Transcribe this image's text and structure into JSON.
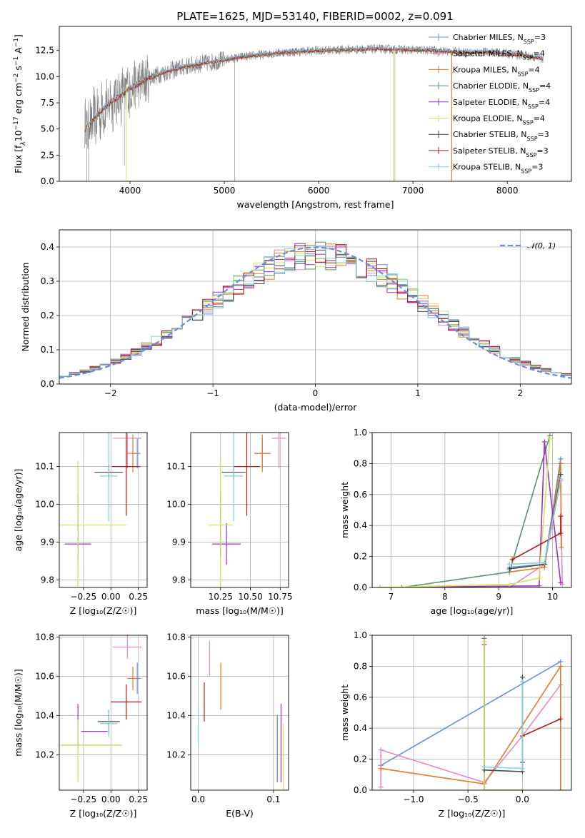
{
  "figure_title": "PLATE=1625, MJD=53140, FIBERID=0002, z=0.091",
  "colors": {
    "chabrier_miles": "#6a8fd8",
    "salpeter_miles": "#e08bc4",
    "kroupa_miles": "#e07b2a",
    "chabrier_elodie": "#5f8f6a",
    "salpeter_elodie": "#9b30c4",
    "kroupa_elodie": "#d4e35a",
    "chabrier_stelib": "#4a4a4a",
    "salpeter_stelib": "#b01c1c",
    "kroupa_stelib": "#7fd3dd",
    "data": "#808080",
    "normal": "#6a8fd8",
    "grid": "#b0b0b0"
  },
  "chart_data": [
    {
      "id": "spectrum",
      "type": "line",
      "title": "PLATE=1625, MJD=53140, FIBERID=0002, z=0.091",
      "xlabel": "wavelength [Angstrom, rest frame]",
      "ylabel": "Flux [f",
      "ylabel_parts": [
        "Flux [f",
        "λ",
        "10",
        "−17",
        " erg cm",
        "−2",
        " s",
        "−1",
        " A",
        "−1",
        "]"
      ],
      "xlim": [
        3250,
        8680
      ],
      "ylim": [
        0,
        14.8
      ],
      "xticks": [
        4000,
        5000,
        6000,
        7000,
        8000
      ],
      "yticks": [
        0.0,
        2.5,
        5.0,
        7.5,
        10.0,
        12.5
      ],
      "xtick_labels": [
        "4000",
        "5000",
        "6000",
        "7000",
        "8000"
      ],
      "ytick_labels": [
        "0.0",
        "2.5",
        "5.0",
        "7.5",
        "10.0",
        "12.5"
      ],
      "continuum_x": [
        3520,
        3600,
        3700,
        3800,
        3900,
        4000,
        4100,
        4200,
        4400,
        4600,
        4800,
        5000,
        5200,
        5400,
        5600,
        5800,
        6000,
        6200,
        6400,
        6600,
        6800,
        7000,
        7200,
        7400,
        7600,
        7800,
        8000,
        8200,
        8380
      ],
      "continuum_y": [
        5.0,
        5.8,
        6.8,
        7.6,
        8.2,
        8.9,
        9.4,
        9.9,
        10.5,
        11.0,
        11.3,
        11.6,
        11.9,
        12.1,
        12.3,
        12.4,
        12.5,
        12.55,
        12.6,
        12.65,
        12.6,
        12.55,
        12.5,
        12.4,
        12.3,
        12.35,
        12.2,
        12.0,
        11.7
      ],
      "legend": [
        "Chabrier MILES, N",
        "Salpeter MILES, N",
        "Kroupa MILES, N",
        "Chabrier ELODIE, N",
        "Salpeter ELODIE, N",
        "Kroupa ELODIE, N",
        "Chabrier STELIB, N",
        "Salpeter STELIB, N",
        "Kroupa STELIB, N"
      ],
      "legend_sub": "SSP",
      "legend_n": [
        "=3",
        "=4",
        "=4",
        "=4",
        "=4",
        "=4",
        "=3",
        "=3",
        "=3"
      ],
      "legend_placement": "upper right",
      "grid": false
    },
    {
      "id": "residuals",
      "type": "histogram",
      "xlabel": "(data-model)/error",
      "ylabel": "Normed distribution",
      "xlim": [
        -2.5,
        2.5
      ],
      "ylim": [
        0,
        0.45
      ],
      "xticks": [
        -2,
        -1,
        0,
        1,
        2
      ],
      "yticks": [
        0.0,
        0.1,
        0.2,
        0.3,
        0.4
      ],
      "xtick_labels": [
        "−2",
        "−1",
        "0",
        "1",
        "2"
      ],
      "ytick_labels": [
        "0.0",
        "0.1",
        "0.2",
        "0.3",
        "0.4"
      ],
      "bin_width": 0.1,
      "normal_label": "𝒩(0, 1)",
      "legend_placement": "upper right",
      "grid": true
    },
    {
      "id": "age_vs_Z",
      "type": "scatter",
      "xlabel": "Z [log₁₀(Z/Z☉)]",
      "ylabel": "age  [log₁₀(age/yr)]",
      "xlim": [
        -0.47,
        0.33
      ],
      "ylim": [
        9.78,
        10.19
      ],
      "xticks": [
        -0.25,
        0.0,
        0.25
      ],
      "yticks": [
        9.8,
        9.9,
        10.0,
        10.1
      ],
      "xtick_labels": [
        "−0.25",
        "0.00",
        "0.25"
      ],
      "ytick_labels": [
        "9.8",
        "9.9",
        "10.0",
        "10.1"
      ],
      "grid": true,
      "points": [
        {
          "s": "chabrier_miles",
          "x": 0.24,
          "xe": 0.03,
          "y": 10.135,
          "ye": 0.04
        },
        {
          "s": "salpeter_miles",
          "x": 0.15,
          "xe": 0.13,
          "y": 10.175,
          "ye": 0.08
        },
        {
          "s": "kroupa_miles",
          "x": 0.2,
          "xe": 0.05,
          "y": 10.135,
          "ye": 0.05
        },
        {
          "s": "chabrier_elodie",
          "x": -0.3,
          "xe": 0.0,
          "y": 9.945,
          "ye": 0.085
        },
        {
          "s": "salpeter_elodie",
          "x": -0.3,
          "xe": 0.12,
          "y": 9.895,
          "ye": 0.055
        },
        {
          "s": "kroupa_elodie",
          "x": -0.3,
          "xe": 0.0,
          "y": 9.945,
          "ye": 0.17
        },
        {
          "s": "chabrier_stelib",
          "x": -0.02,
          "xe": 0.13,
          "y": 10.085,
          "ye": 0.02
        },
        {
          "s": "salpeter_stelib",
          "x": 0.14,
          "xe": 0.13,
          "y": 10.1,
          "ye": 0.13
        },
        {
          "s": "kroupa_stelib",
          "x": -0.02,
          "xe": 0.08,
          "y": 10.075,
          "ye": 0.12
        },
        {
          "s": "kroupa_elodie",
          "x": -0.18,
          "xe": 0.32,
          "y": 9.945,
          "ye": 0.0
        }
      ]
    },
    {
      "id": "age_vs_mass",
      "type": "scatter",
      "xlabel": "mass [log₁₀(M/M☉)]",
      "ylabel": "",
      "xlim": [
        10.0,
        10.82
      ],
      "ylim": [
        9.78,
        10.19
      ],
      "xticks": [
        10.25,
        10.5,
        10.75
      ],
      "yticks": [
        9.8,
        9.9,
        10.0,
        10.1
      ],
      "xtick_labels": [
        "10.25",
        "10.50",
        "10.75"
      ],
      "ytick_labels": [
        "9.8",
        "9.9",
        "10.0",
        "10.1"
      ],
      "grid": true,
      "points": [
        {
          "s": "chabrier_miles",
          "x": 10.6,
          "xe": 0.07,
          "y": 10.135,
          "ye": 0.04
        },
        {
          "s": "salpeter_miles",
          "x": 10.74,
          "xe": 0.06,
          "y": 10.175,
          "ye": 0.08
        },
        {
          "s": "kroupa_miles",
          "x": 10.6,
          "xe": 0.06,
          "y": 10.135,
          "ye": 0.05
        },
        {
          "s": "chabrier_elodie",
          "x": 10.25,
          "xe": 0.0,
          "y": 9.945,
          "ye": 0.085
        },
        {
          "s": "salpeter_elodie",
          "x": 10.3,
          "xe": 0.12,
          "y": 9.895,
          "ye": 0.055
        },
        {
          "s": "kroupa_elodie",
          "x": 10.25,
          "xe": 0.1,
          "y": 9.945,
          "ye": 0.17
        },
        {
          "s": "chabrier_stelib",
          "x": 10.36,
          "xe": 0.1,
          "y": 10.085,
          "ye": 0.02
        },
        {
          "s": "salpeter_stelib",
          "x": 10.47,
          "xe": 0.11,
          "y": 10.1,
          "ye": 0.13
        },
        {
          "s": "kroupa_stelib",
          "x": 10.36,
          "xe": 0.08,
          "y": 10.075,
          "ye": 0.12
        }
      ]
    },
    {
      "id": "massweight_vs_age",
      "type": "line",
      "xlabel": "age  [log₁₀(age/yr)]",
      "ylabel": "mass weight",
      "xlim": [
        6.65,
        10.35
      ],
      "ylim": [
        0,
        1.0
      ],
      "xticks": [
        7,
        8,
        9,
        10
      ],
      "yticks": [
        0.0,
        0.2,
        0.4,
        0.6,
        0.8,
        1.0
      ],
      "xtick_labels": [
        "7",
        "8",
        "9",
        "10"
      ],
      "ytick_labels": [
        "0.0",
        "0.2",
        "0.4",
        "0.6",
        "0.8",
        "1.0"
      ],
      "grid": true,
      "series": [
        {
          "s": "chabrier_miles",
          "x": [
            9.2,
            9.85,
            10.15
          ],
          "y": [
            0.13,
            0.15,
            0.83
          ]
        },
        {
          "s": "salpeter_miles",
          "x": [
            9.2,
            9.85,
            10.15,
            10.18
          ],
          "y": [
            0.0,
            0.15,
            0.69,
            0.02
          ]
        },
        {
          "s": "kroupa_miles",
          "x": [
            9.2,
            9.85,
            10.15,
            10.16
          ],
          "y": [
            0.1,
            0.13,
            0.8,
            0.26
          ]
        },
        {
          "s": "chabrier_elodie",
          "x": [
            7.2,
            9.2,
            9.95
          ],
          "y": [
            0.0,
            0.1,
            0.98
          ]
        },
        {
          "s": "salpeter_elodie",
          "x": [
            6.8,
            9.75,
            9.85,
            10.15
          ],
          "y": [
            0.0,
            0.01,
            0.94,
            0.03
          ]
        },
        {
          "s": "kroupa_elodie",
          "x": [
            6.8,
            9.2,
            9.75,
            9.95
          ],
          "y": [
            0.0,
            0.02,
            0.06,
            0.96
          ]
        },
        {
          "s": "chabrier_stelib",
          "x": [
            9.2,
            9.85,
            10.15
          ],
          "y": [
            0.12,
            0.15,
            0.73
          ]
        },
        {
          "s": "salpeter_stelib",
          "x": [
            9.25,
            10.15,
            10.15
          ],
          "y": [
            0.18,
            0.35,
            0.46
          ]
        },
        {
          "s": "kroupa_stelib",
          "x": [
            9.2,
            9.85,
            10.15
          ],
          "y": [
            0.15,
            0.16,
            0.7
          ]
        }
      ]
    },
    {
      "id": "mass_vs_Z",
      "type": "scatter",
      "xlabel": "Z [log₁₀(Z/Z☉)]",
      "ylabel": "mass [log₁₀(M/M☉)]",
      "xlim": [
        -0.47,
        0.33
      ],
      "ylim": [
        10.02,
        10.81
      ],
      "xticks": [
        -0.25,
        0.0,
        0.25
      ],
      "yticks": [
        10.2,
        10.4,
        10.6,
        10.8
      ],
      "xtick_labels": [
        "−0.25",
        "0.00",
        "0.25"
      ],
      "ytick_labels": [
        "10.2",
        "10.4",
        "10.6",
        "10.8"
      ],
      "grid": true,
      "points": [
        {
          "s": "chabrier_miles",
          "x": 0.24,
          "xe": 0.03,
          "y": 10.59,
          "ye": 0.08
        },
        {
          "s": "salpeter_miles",
          "x": 0.15,
          "xe": 0.13,
          "y": 10.75,
          "ye": 0.06
        },
        {
          "s": "kroupa_miles",
          "x": 0.2,
          "xe": 0.05,
          "y": 10.59,
          "ye": 0.06
        },
        {
          "s": "chabrier_elodie",
          "x": -0.18,
          "xe": 0.28,
          "y": 10.25,
          "ye": 0.0
        },
        {
          "s": "salpeter_elodie",
          "x": -0.15,
          "xe": 0.12,
          "y": 10.32,
          "ye": 0.0
        },
        {
          "s": "kroupa_elodie",
          "x": -0.18,
          "xe": 0.28,
          "y": 10.25,
          "ye": 0.0
        },
        {
          "s": "salpeter_elodie",
          "x": -0.3,
          "xe": 0.0,
          "y": 10.35,
          "ye": 0.11
        },
        {
          "s": "kroupa_elodie",
          "x": -0.3,
          "xe": 0.0,
          "y": 10.22,
          "ye": 0.16
        },
        {
          "s": "chabrier_stelib",
          "x": -0.02,
          "xe": 0.1,
          "y": 10.37,
          "ye": 0.06
        },
        {
          "s": "salpeter_stelib",
          "x": 0.14,
          "xe": 0.14,
          "y": 10.47,
          "ye": 0.09
        },
        {
          "s": "kroupa_stelib",
          "x": -0.02,
          "xe": 0.08,
          "y": 10.36,
          "ye": 0.07
        }
      ]
    },
    {
      "id": "mass_vs_ebv",
      "type": "scatter",
      "xlabel": "E(B-V)",
      "ylabel": "",
      "xlim": [
        -0.01,
        0.12
      ],
      "ylim": [
        10.02,
        10.81
      ],
      "xticks": [
        0.0,
        0.1
      ],
      "yticks": [
        10.2,
        10.4,
        10.6,
        10.8
      ],
      "xtick_labels": [
        "0.0",
        "0.1"
      ],
      "ytick_labels": [
        "10.2",
        "10.4",
        "10.6",
        "10.8"
      ],
      "grid": true,
      "points": [
        {
          "s": "salpeter_miles",
          "x": 0.015,
          "xe": 0.0,
          "y": 10.69,
          "ye": 0.09
        },
        {
          "s": "kroupa_miles",
          "x": 0.03,
          "xe": 0.0,
          "y": 10.55,
          "ye": 0.12
        },
        {
          "s": "salpeter_stelib",
          "x": 0.008,
          "xe": 0.0,
          "y": 10.47,
          "ye": 0.1
        },
        {
          "s": "kroupa_stelib",
          "x": 0.0,
          "xe": 0.0,
          "y": 10.34,
          "ye": 0.1
        },
        {
          "s": "chabrier_elodie",
          "x": 0.105,
          "xe": 0.0,
          "y": 10.23,
          "ye": 0.17
        },
        {
          "s": "salpeter_elodie",
          "x": 0.11,
          "xe": 0.0,
          "y": 10.26,
          "ye": 0.2
        },
        {
          "s": "kroupa_elodie",
          "x": 0.113,
          "xe": 0.0,
          "y": 10.18,
          "ye": 0.18
        }
      ]
    },
    {
      "id": "massweight_vs_Z",
      "type": "line",
      "xlabel": "Z [log₁₀(Z/Z☉)]",
      "ylabel": "mass weight",
      "xlim": [
        -1.38,
        0.45
      ],
      "ylim": [
        0,
        1.0
      ],
      "xticks": [
        -1.0,
        -0.5,
        0.0
      ],
      "yticks": [
        0.0,
        0.2,
        0.4,
        0.6,
        0.8,
        1.0
      ],
      "xtick_labels": [
        "−1.0",
        "−0.5",
        "0.0"
      ],
      "ytick_labels": [
        "0.0",
        "0.2",
        "0.4",
        "0.6",
        "0.8",
        "1.0"
      ],
      "grid": true,
      "series": [
        {
          "s": "chabrier_miles",
          "x": [
            -1.3,
            0.35
          ],
          "y": [
            0.16,
            0.83
          ]
        },
        {
          "s": "salpeter_miles",
          "x": [
            -1.3,
            -1.3,
            -0.35,
            0.0,
            0.35,
            0.35
          ],
          "y": [
            0.02,
            0.26,
            0.05,
            0.35,
            0.68,
            0.0
          ]
        },
        {
          "s": "kroupa_miles",
          "x": [
            -1.3,
            -0.35,
            0.35,
            0.35
          ],
          "y": [
            0.14,
            0.04,
            0.8,
            0.0
          ]
        },
        {
          "s": "chabrier_elodie",
          "x": [
            -0.35,
            -0.35,
            0.0
          ],
          "y": [
            0.98,
            0.0,
            0.0
          ]
        },
        {
          "s": "salpeter_elodie",
          "x": [
            -0.35,
            -0.35
          ],
          "y": [
            0.94,
            0.0
          ]
        },
        {
          "s": "kroupa_elodie",
          "x": [
            -0.35,
            -0.35,
            0.0
          ],
          "y": [
            0.96,
            0.0,
            0.0
          ]
        },
        {
          "s": "chabrier_stelib",
          "x": [
            -0.35,
            0.0,
            0.0,
            0.0
          ],
          "y": [
            0.13,
            0.12,
            0.73,
            0.18
          ]
        },
        {
          "s": "salpeter_stelib",
          "x": [
            0.0,
            0.35
          ],
          "y": [
            0.35,
            0.46
          ]
        },
        {
          "s": "kroupa_stelib",
          "x": [
            -0.35,
            0.0,
            0.0
          ],
          "y": [
            0.15,
            0.14,
            0.7
          ]
        }
      ]
    }
  ]
}
